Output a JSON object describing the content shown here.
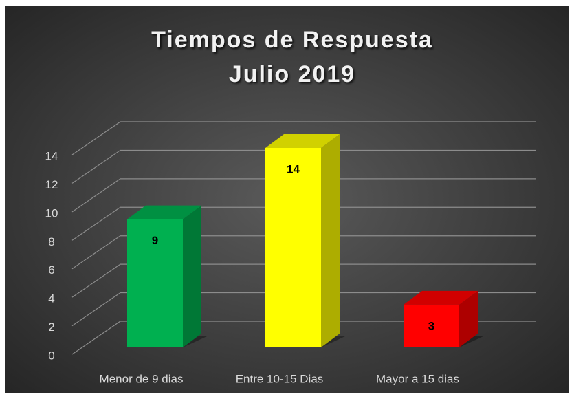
{
  "chart_data": {
    "type": "bar3d",
    "title": "Tiempos de Respuesta",
    "subtitle": "Julio 2019",
    "categories": [
      "Menor de 9 dias",
      "Entre 10-15 Dias",
      "Mayor a 15 dias"
    ],
    "values": [
      9,
      14,
      3
    ],
    "colors": [
      "#00b050",
      "#ffff00",
      "#ff0000"
    ],
    "ylim": [
      0,
      14
    ],
    "yticks": [
      0,
      2,
      4,
      6,
      8,
      10,
      12,
      14
    ],
    "grid": true
  }
}
